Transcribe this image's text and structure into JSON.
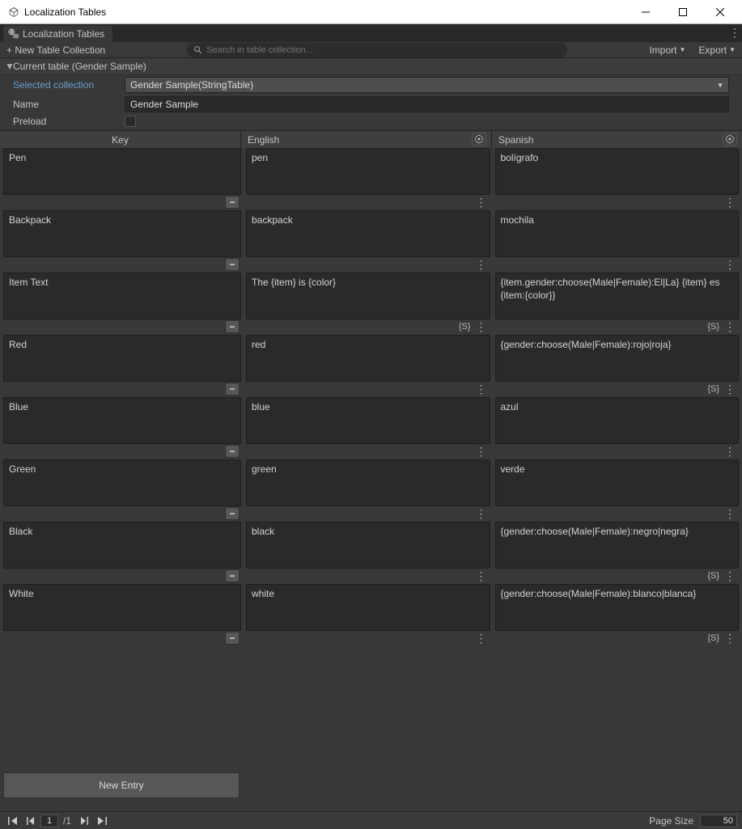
{
  "window": {
    "title": "Localization Tables"
  },
  "tab": {
    "label": "Localization Tables"
  },
  "toolbar": {
    "new_collection": "+ New Table Collection",
    "search_placeholder": "Search in table collection...",
    "import": "Import",
    "export": "Export"
  },
  "current_table": {
    "header": "Current table (Gender Sample)",
    "selected_label": "Selected collection",
    "selected_value": "Gender Sample(StringTable)",
    "name_label": "Name",
    "name_value": "Gender Sample",
    "preload_label": "Preload"
  },
  "columns": {
    "key": "Key",
    "english": "English",
    "spanish": "Spanish"
  },
  "entries": [
    {
      "key": "Pen",
      "en": "pen",
      "es": "bolígrafo",
      "en_smart": false,
      "es_smart": false
    },
    {
      "key": "Backpack",
      "en": "backpack",
      "es": "mochila",
      "en_smart": false,
      "es_smart": false
    },
    {
      "key": "Item Text",
      "en": "The {item} is {color}",
      "es": "{item.gender:choose(Male|Female):El|La} {item} es {item:{color}}",
      "en_smart": true,
      "es_smart": true
    },
    {
      "key": "Red",
      "en": "red",
      "es": "{gender:choose(Male|Female):rojo|roja}",
      "en_smart": false,
      "es_smart": true
    },
    {
      "key": "Blue",
      "en": "blue",
      "es": "azul",
      "en_smart": false,
      "es_smart": false
    },
    {
      "key": "Green",
      "en": "green",
      "es": "verde",
      "en_smart": false,
      "es_smart": false
    },
    {
      "key": "Black",
      "en": "black",
      "es": "{gender:choose(Male|Female):negro|negra}",
      "en_smart": false,
      "es_smart": true
    },
    {
      "key": "White",
      "en": "white",
      "es": "{gender:choose(Male|Female):blanco|blanca}",
      "en_smart": false,
      "es_smart": true
    }
  ],
  "new_entry_label": "New Entry",
  "pager": {
    "page": "1",
    "total": "/1",
    "page_size_label": "Page Size",
    "page_size_value": "50"
  },
  "smart_badge": "{S}",
  "colors": {
    "bg": "#383838",
    "darker": "#2a2a2a",
    "accent": "#6c9fcb"
  }
}
